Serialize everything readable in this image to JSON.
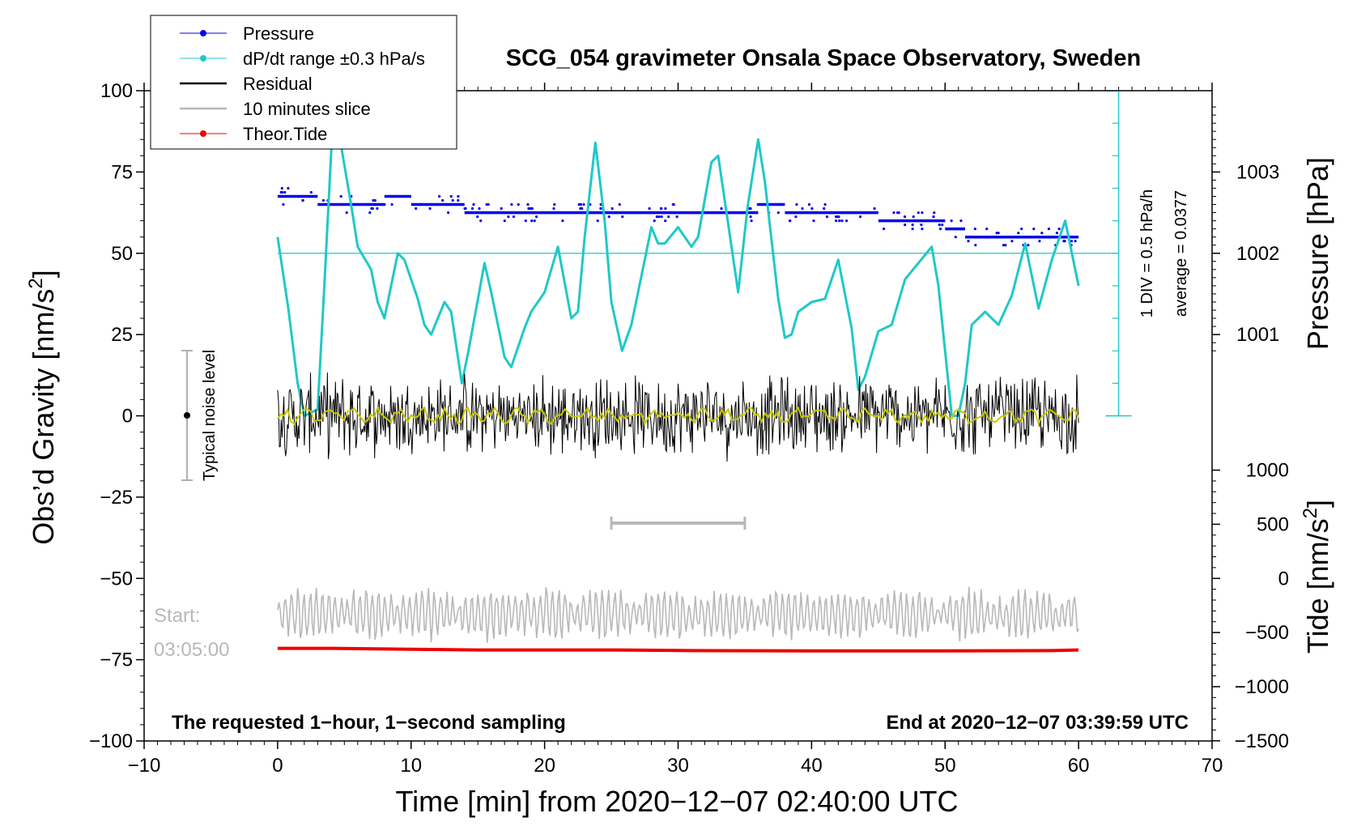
{
  "chart_data": {
    "type": "line",
    "title": "SCG_054 gravimeter Onsala Space Observatory, Sweden",
    "xlabel": "Time [min] from 2020−12−07 02:40:00 UTC",
    "ylabel_left": "Obs’d Gravity [nm/s",
    "ylabel_left_sup": "2",
    "ylabel_left_close": "]",
    "ylabel_right_top": "Pressure [hPa]",
    "ylabel_right_bottom": "Tide [nm/s",
    "ylabel_right_bottom_sup": "2",
    "ylabel_right_bottom_close": "]",
    "xlim": [
      -10,
      70
    ],
    "ylim_left": [
      -100,
      100
    ],
    "x_ticks": [
      -10,
      0,
      10,
      20,
      30,
      40,
      50,
      60,
      70
    ],
    "x_tick_labels": [
      "−10",
      "0",
      "10",
      "20",
      "30",
      "40",
      "50",
      "60",
      "70"
    ],
    "y_left_ticks": [
      -100,
      -75,
      -50,
      -25,
      0,
      25,
      50,
      75,
      100
    ],
    "y_left_tick_labels": [
      "−100",
      "−75",
      "−50",
      "−25",
      "0",
      "25",
      "50",
      "75",
      "100"
    ],
    "pressure_axis": {
      "ticks": [
        1001,
        1002,
        1003
      ],
      "tick_labels": [
        "1001",
        "1002",
        "1003"
      ],
      "ref_gravity_at_1002": 50,
      "nm_per_hpa": 25
    },
    "tide_axis": {
      "ticks": [
        1000,
        500,
        0,
        -500,
        -1000,
        -1500
      ],
      "tick_labels": [
        "1000",
        "500",
        "0",
        "−500",
        "−1000",
        "−1500"
      ],
      "ref_gravity_at_0": -50,
      "nm_per_unit": 0.0333
    },
    "series": [
      {
        "name": "Pressure",
        "color": "#0000ee",
        "points": [
          [
            0,
            67.5
          ],
          [
            3,
            67.5
          ],
          [
            3,
            65
          ],
          [
            8,
            65
          ],
          [
            8,
            67.5
          ],
          [
            10,
            67.5
          ],
          [
            10,
            65
          ],
          [
            14,
            65
          ],
          [
            14,
            62.5
          ],
          [
            31,
            62.5
          ],
          [
            36,
            62.5
          ],
          [
            36,
            65
          ],
          [
            38,
            65
          ],
          [
            38,
            62.5
          ],
          [
            45,
            62.5
          ],
          [
            45,
            60
          ],
          [
            50,
            60
          ],
          [
            50,
            57.5
          ],
          [
            51.5,
            57.5
          ],
          [
            51.5,
            55
          ],
          [
            57,
            55
          ],
          [
            57,
            55
          ],
          [
            60,
            55
          ]
        ]
      },
      {
        "name": "dP/dt range ±0.3 hPa/s",
        "color": "#20c8c8",
        "points": [
          [
            0,
            55
          ],
          [
            0.8,
            33
          ],
          [
            1.5,
            10
          ],
          [
            2,
            0
          ],
          [
            3,
            2
          ],
          [
            3.5,
            40
          ],
          [
            4,
            80
          ],
          [
            4.3,
            100
          ],
          [
            4.8,
            82
          ],
          [
            5.5,
            65
          ],
          [
            6,
            52
          ],
          [
            7,
            45
          ],
          [
            7.5,
            35
          ],
          [
            8,
            30
          ],
          [
            9,
            50
          ],
          [
            9.5,
            48
          ],
          [
            10.5,
            36
          ],
          [
            11,
            28
          ],
          [
            11.5,
            25
          ],
          [
            12.5,
            35
          ],
          [
            13,
            32
          ],
          [
            13.8,
            10
          ],
          [
            14.3,
            20
          ],
          [
            15.5,
            47
          ],
          [
            16,
            38
          ],
          [
            17,
            18
          ],
          [
            17.5,
            15
          ],
          [
            18.5,
            27
          ],
          [
            19,
            32
          ],
          [
            20,
            38
          ],
          [
            21,
            52
          ],
          [
            22,
            30
          ],
          [
            22.5,
            32
          ],
          [
            23,
            55
          ],
          [
            23.8,
            84
          ],
          [
            24.5,
            60
          ],
          [
            25,
            35
          ],
          [
            25.8,
            20
          ],
          [
            26.5,
            28
          ],
          [
            27.5,
            48
          ],
          [
            28,
            58
          ],
          [
            28.5,
            53
          ],
          [
            29,
            53
          ],
          [
            30,
            58
          ],
          [
            31,
            52
          ],
          [
            31.5,
            55
          ],
          [
            32.5,
            78
          ],
          [
            33,
            80
          ],
          [
            34,
            52
          ],
          [
            34.5,
            38
          ],
          [
            35.2,
            64
          ],
          [
            36,
            85
          ],
          [
            36.5,
            72
          ],
          [
            37.5,
            36
          ],
          [
            38,
            24
          ],
          [
            38.5,
            25
          ],
          [
            39,
            32
          ],
          [
            40,
            35
          ],
          [
            41,
            36
          ],
          [
            42,
            48
          ],
          [
            43,
            27
          ],
          [
            43.5,
            8
          ],
          [
            44,
            12
          ],
          [
            45,
            26
          ],
          [
            46,
            28
          ],
          [
            47,
            42
          ],
          [
            48,
            47
          ],
          [
            49,
            52
          ],
          [
            49.5,
            40
          ],
          [
            50.5,
            0
          ],
          [
            51,
            0
          ],
          [
            51.5,
            10
          ],
          [
            52,
            28
          ],
          [
            53,
            32
          ],
          [
            54,
            28
          ],
          [
            55,
            37
          ],
          [
            56,
            53
          ],
          [
            57,
            33
          ],
          [
            58,
            48
          ],
          [
            59,
            60
          ],
          [
            60,
            40
          ]
        ]
      },
      {
        "name": "Residual",
        "color": "#000000",
        "center": 0,
        "noise_amplitude": 8,
        "smoothed_color": "#c8c800"
      },
      {
        "name": "10 minutes slice",
        "color": "#b8b8b8",
        "center": -61,
        "amplitude": 7,
        "bar_x": [
          25,
          35
        ],
        "bar_y": -33
      },
      {
        "name": "Theor.Tide",
        "color": "#ee0000",
        "points": [
          [
            0,
            -71.5
          ],
          [
            4,
            -71.5
          ],
          [
            10,
            -71.8
          ],
          [
            15,
            -72
          ],
          [
            25,
            -72
          ],
          [
            31,
            -72.2
          ],
          [
            40,
            -72.3
          ],
          [
            50,
            -72.3
          ],
          [
            58,
            -72.2
          ],
          [
            60,
            -72
          ]
        ]
      }
    ],
    "legend": {
      "position": "top-left",
      "entries": [
        {
          "label": "Pressure",
          "color": "#0000ee",
          "marker": true
        },
        {
          "label": "dP/dt range ±0.3 hPa/s",
          "color": "#20c8c8",
          "marker": true
        },
        {
          "label": "Residual",
          "color": "#000000",
          "marker": false
        },
        {
          "label": "10 minutes slice",
          "color": "#b8b8b8",
          "marker": false
        },
        {
          "label": "Theor.Tide",
          "color": "#ee0000",
          "marker": true
        }
      ]
    },
    "annotations": {
      "noise_label": "Typical noise level",
      "noise_range": [
        -20,
        20
      ],
      "noise_x": -7,
      "start_label": "Start:",
      "start_time": "03:05:00",
      "footer_left": "The requested 1−hour, 1−second sampling",
      "footer_right": "End at 2020−12−07 03:39:59 UTC",
      "dpdt_div_label": "1 DIV = 0.5 hPa/h",
      "dpdt_average_label": "average = 0.0377",
      "dpdt_axis_x": 63,
      "dpdt_axis_range": [
        0,
        100
      ]
    }
  }
}
